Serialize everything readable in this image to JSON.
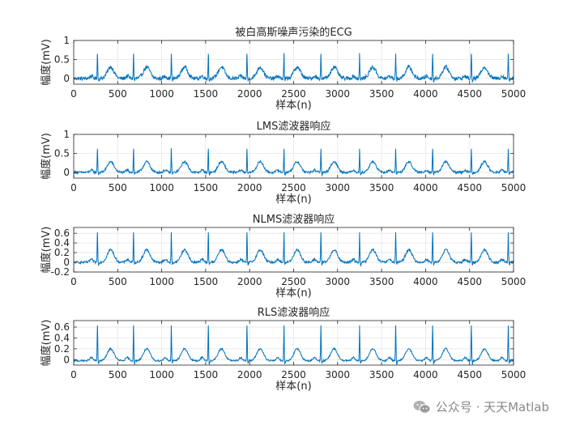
{
  "chart_data": [
    {
      "type": "line",
      "title": "被白高斯噪声污染的ECG",
      "xlabel": "样本(n)",
      "ylabel": "幅度(mV)",
      "xlim": [
        0,
        5000
      ],
      "ylim": [
        -0.15,
        1.0
      ],
      "xticks": [
        0,
        500,
        1000,
        1500,
        2000,
        2500,
        3000,
        3500,
        4000,
        4500,
        5000
      ],
      "yticks": [
        0,
        0.5,
        1
      ],
      "ytick_labels": [
        "0",
        "0.5",
        "1"
      ],
      "grid": true,
      "color": "#0072bd",
      "r_peak_samples": [
        270,
        680,
        1110,
        1530,
        1970,
        2390,
        2810,
        3250,
        3660,
        4080,
        4520,
        4940
      ],
      "r_peak_value": 0.65,
      "t_wave_value": 0.3,
      "baseline": 0.0,
      "noise_amplitude": 0.05
    },
    {
      "type": "line",
      "title": "LMS滤波器响应",
      "xlabel": "样本(n)",
      "ylabel": "幅度(mV)",
      "xlim": [
        0,
        5000
      ],
      "ylim": [
        -0.15,
        1.0
      ],
      "xticks": [
        0,
        500,
        1000,
        1500,
        2000,
        2500,
        3000,
        3500,
        4000,
        4500,
        5000
      ],
      "yticks": [
        0,
        0.5,
        1
      ],
      "ytick_labels": [
        "0",
        "0.5",
        "1"
      ],
      "grid": true,
      "color": "#0072bd",
      "r_peak_samples": [
        270,
        680,
        1110,
        1530,
        1970,
        2390,
        2810,
        3250,
        3660,
        4080,
        4520,
        4940
      ],
      "r_peak_value": 0.62,
      "t_wave_value": 0.28,
      "baseline": 0.0,
      "noise_amplitude": 0.03
    },
    {
      "type": "line",
      "title": "NLMS滤波器响应",
      "xlabel": "样本(n)",
      "ylabel": "幅度(mV)",
      "xlim": [
        0,
        5000
      ],
      "ylim": [
        -0.2,
        0.72
      ],
      "xticks": [
        0,
        500,
        1000,
        1500,
        2000,
        2500,
        3000,
        3500,
        4000,
        4500,
        5000
      ],
      "yticks": [
        -0.2,
        0,
        0.2,
        0.4,
        0.6
      ],
      "ytick_labels": [
        "-0.2",
        "0",
        "0.2",
        "0.4",
        "0.6"
      ],
      "grid": true,
      "color": "#0072bd",
      "r_peak_samples": [
        270,
        680,
        1110,
        1530,
        1970,
        2390,
        2810,
        3250,
        3660,
        4080,
        4520,
        4940
      ],
      "r_peak_value": 0.62,
      "t_wave_value": 0.26,
      "baseline": 0.0,
      "noise_amplitude": 0.025
    },
    {
      "type": "line",
      "title": "RLS滤波器响应",
      "xlabel": "样本(n)",
      "ylabel": "幅度(mV)",
      "xlim": [
        0,
        5000
      ],
      "ylim": [
        -0.1,
        0.72
      ],
      "xticks": [
        0,
        500,
        1000,
        1500,
        2000,
        2500,
        3000,
        3500,
        4000,
        4500,
        5000
      ],
      "yticks": [
        0,
        0.2,
        0.4,
        0.6
      ],
      "ytick_labels": [
        "0",
        "0.2",
        "0.4",
        "0.6"
      ],
      "grid": true,
      "color": "#0072bd",
      "r_peak_samples": [
        270,
        680,
        1110,
        1530,
        1970,
        2390,
        2810,
        3250,
        3660,
        4080,
        4520,
        4940
      ],
      "r_peak_value": 0.65,
      "t_wave_value": 0.22,
      "baseline": -0.02,
      "noise_amplitude": 0.015
    }
  ],
  "watermark": {
    "text": "公众号 · 天天Matlab",
    "icon": "wechat-icon"
  }
}
